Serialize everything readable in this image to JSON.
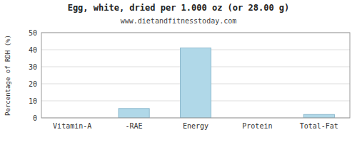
{
  "chart_data": {
    "type": "bar",
    "title": "Egg, white, dried per 1.000 oz (or 28.00 g)",
    "subtitle": "www.dietandfitnesstoday.com",
    "categories": [
      "Vitamin-A",
      "-RAE",
      "Energy",
      "Protein",
      "Total-Fat"
    ],
    "values": [
      0,
      5.5,
      41,
      0,
      2.0
    ],
    "color": "#b0d8e8",
    "ylabel": "Percentage of RDH (%)",
    "ylim": [
      0,
      50
    ],
    "yticks": [
      0,
      10,
      20,
      30,
      40,
      50
    ],
    "grid": true
  }
}
